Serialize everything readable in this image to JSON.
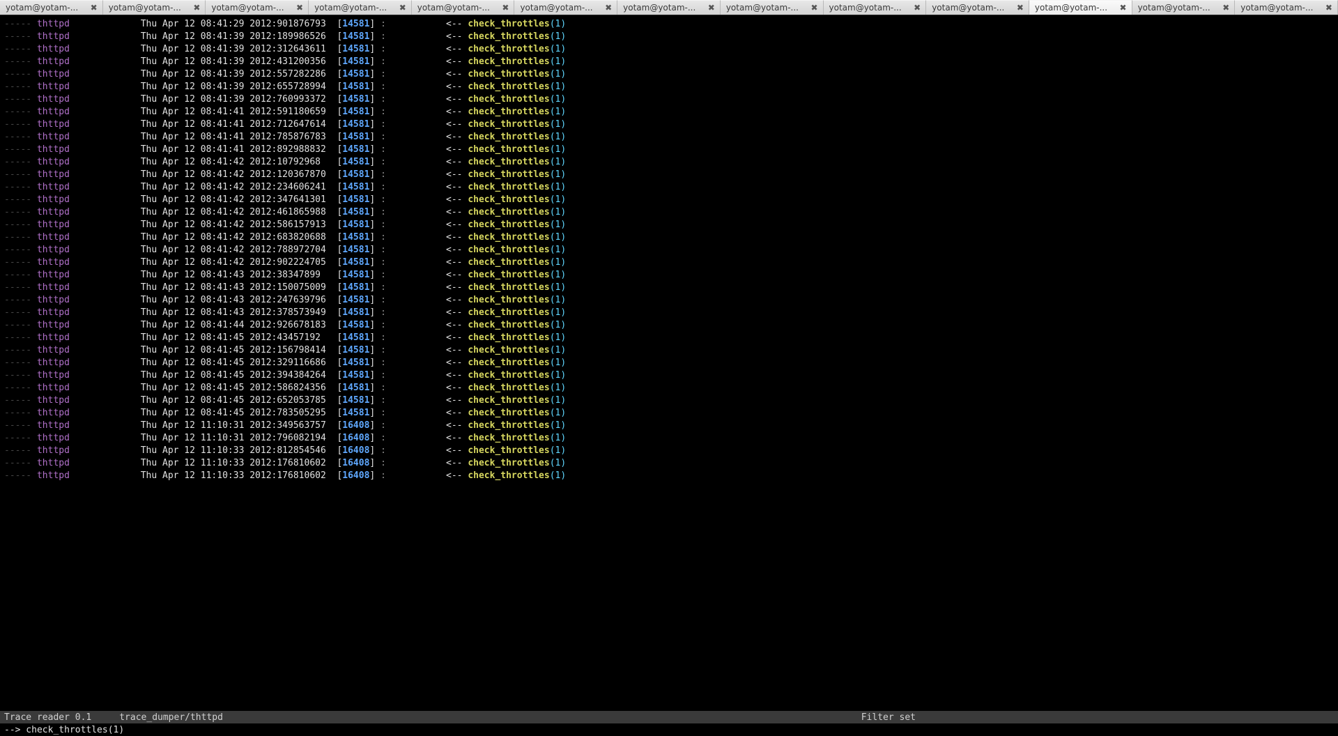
{
  "colors": {
    "bg": "#000000",
    "tabbar_bg": "#3c3c3c",
    "tab_bg_from": "#e8e8e8",
    "tab_bg_to": "#d4d4d4",
    "tab_active_from": "#fafafa",
    "tab_active_to": "#ececec",
    "statusbar_bg": "#3a3a3a",
    "dash": "#444444",
    "process": "#b070c8",
    "timestamp": "#e0e0e0",
    "bracket": "#e0e0e0",
    "pid": "#5fa8ff",
    "arrow": "#e0e0e0",
    "func": "#d7d75f",
    "arg": "#5fd7ff"
  },
  "tabs": {
    "label": "yotam@yotam-...",
    "count": 13,
    "active_index": 10
  },
  "log": {
    "dash_prefix": "-----",
    "process": "thttpd",
    "date_prefix": "Thu Apr 12",
    "arrow": "<--",
    "func": "check_throttles",
    "arg": "1",
    "rows": [
      {
        "time": "08:41:29",
        "year": "2012",
        "ns": "901876793",
        "pid": "14581"
      },
      {
        "time": "08:41:39",
        "year": "2012",
        "ns": "189986526",
        "pid": "14581"
      },
      {
        "time": "08:41:39",
        "year": "2012",
        "ns": "312643611",
        "pid": "14581"
      },
      {
        "time": "08:41:39",
        "year": "2012",
        "ns": "431200356",
        "pid": "14581"
      },
      {
        "time": "08:41:39",
        "year": "2012",
        "ns": "557282286",
        "pid": "14581"
      },
      {
        "time": "08:41:39",
        "year": "2012",
        "ns": "655728994",
        "pid": "14581"
      },
      {
        "time": "08:41:39",
        "year": "2012",
        "ns": "760993372",
        "pid": "14581"
      },
      {
        "time": "08:41:41",
        "year": "2012",
        "ns": "591180659",
        "pid": "14581"
      },
      {
        "time": "08:41:41",
        "year": "2012",
        "ns": "712647614",
        "pid": "14581"
      },
      {
        "time": "08:41:41",
        "year": "2012",
        "ns": "785876783",
        "pid": "14581"
      },
      {
        "time": "08:41:41",
        "year": "2012",
        "ns": "892988832",
        "pid": "14581"
      },
      {
        "time": "08:41:42",
        "year": "2012",
        "ns": "10792968",
        "pid": "14581"
      },
      {
        "time": "08:41:42",
        "year": "2012",
        "ns": "120367870",
        "pid": "14581"
      },
      {
        "time": "08:41:42",
        "year": "2012",
        "ns": "234606241",
        "pid": "14581"
      },
      {
        "time": "08:41:42",
        "year": "2012",
        "ns": "347641301",
        "pid": "14581"
      },
      {
        "time": "08:41:42",
        "year": "2012",
        "ns": "461865988",
        "pid": "14581"
      },
      {
        "time": "08:41:42",
        "year": "2012",
        "ns": "586157913",
        "pid": "14581"
      },
      {
        "time": "08:41:42",
        "year": "2012",
        "ns": "683820688",
        "pid": "14581"
      },
      {
        "time": "08:41:42",
        "year": "2012",
        "ns": "788972704",
        "pid": "14581"
      },
      {
        "time": "08:41:42",
        "year": "2012",
        "ns": "902224705",
        "pid": "14581"
      },
      {
        "time": "08:41:43",
        "year": "2012",
        "ns": "38347899",
        "pid": "14581"
      },
      {
        "time": "08:41:43",
        "year": "2012",
        "ns": "150075009",
        "pid": "14581"
      },
      {
        "time": "08:41:43",
        "year": "2012",
        "ns": "247639796",
        "pid": "14581"
      },
      {
        "time": "08:41:43",
        "year": "2012",
        "ns": "378573949",
        "pid": "14581"
      },
      {
        "time": "08:41:44",
        "year": "2012",
        "ns": "926678183",
        "pid": "14581"
      },
      {
        "time": "08:41:45",
        "year": "2012",
        "ns": "43457192",
        "pid": "14581"
      },
      {
        "time": "08:41:45",
        "year": "2012",
        "ns": "156798414",
        "pid": "14581"
      },
      {
        "time": "08:41:45",
        "year": "2012",
        "ns": "329116686",
        "pid": "14581"
      },
      {
        "time": "08:41:45",
        "year": "2012",
        "ns": "394384264",
        "pid": "14581"
      },
      {
        "time": "08:41:45",
        "year": "2012",
        "ns": "586824356",
        "pid": "14581"
      },
      {
        "time": "08:41:45",
        "year": "2012",
        "ns": "652053785",
        "pid": "14581"
      },
      {
        "time": "08:41:45",
        "year": "2012",
        "ns": "783505295",
        "pid": "14581"
      },
      {
        "time": "11:10:31",
        "year": "2012",
        "ns": "349563757",
        "pid": "16408"
      },
      {
        "time": "11:10:31",
        "year": "2012",
        "ns": "796082194",
        "pid": "16408"
      },
      {
        "time": "11:10:33",
        "year": "2012",
        "ns": "812854546",
        "pid": "16408"
      },
      {
        "time": "11:10:33",
        "year": "2012",
        "ns": "176810602",
        "pid": "16408"
      },
      {
        "time": "11:10:33",
        "year": "2012",
        "ns": "176810602",
        "pid": "16408"
      }
    ]
  },
  "statusbar": {
    "left": "Trace reader 0.1",
    "mid": "trace_dumper/thttpd",
    "right": "Filter set"
  },
  "prompt": {
    "text": "--> check_throttles(1)"
  }
}
